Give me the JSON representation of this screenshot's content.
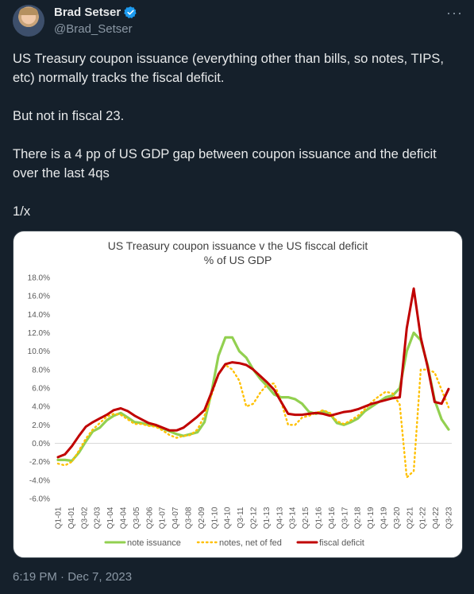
{
  "author": {
    "name": "Brad Setser",
    "handle": "@Brad_Setser"
  },
  "more_label": "···",
  "tweet": {
    "paragraphs": [
      "US Treasury coupon issuance (everything other than bills, so notes, TIPS, etc) normally tracks the fiscal deficit.",
      "But not in fiscal 23.",
      "There is a 4 pp of US GDP gap between coupon issuance and the deficit over the last 4qs",
      "1/x"
    ]
  },
  "timestamp": "6:19 PM · Dec 7, 2023",
  "colors": {
    "verified": "#1d9bf0",
    "note_issuance": "#92d050",
    "notes_net_of_fed": "#ffc000",
    "fiscal_deficit": "#c00000"
  },
  "chart_data": {
    "type": "line",
    "title": "US Treasury coupon issuance v the US fisccal deficit",
    "subtitle": "% of US GDP",
    "ylim": [
      -6,
      18
    ],
    "yticks": [
      18,
      16,
      14,
      12,
      10,
      8,
      6,
      4,
      2,
      0,
      -2,
      -4,
      -6
    ],
    "ytick_labels": [
      "18.0%",
      "16.0%",
      "14.0%",
      "12.0%",
      "10.0%",
      "8.0%",
      "6.0%",
      "4.0%",
      "2.0%",
      "0.0%",
      "-2.0%",
      "-4.0%",
      "-6.0%"
    ],
    "xtick_labels": [
      "Q1-01",
      "Q4-01",
      "Q3-02",
      "Q2-03",
      "Q1-04",
      "Q4-04",
      "Q3-05",
      "Q2-06",
      "Q1-07",
      "Q4-07",
      "Q3-08",
      "Q2-09",
      "Q1-10",
      "Q4-10",
      "Q3-11",
      "Q2-12",
      "Q1-13",
      "Q4-13",
      "Q3-14",
      "Q2-15",
      "Q1-16",
      "Q4-16",
      "Q3-17",
      "Q2-18",
      "Q1-19",
      "Q4-19",
      "Q3-20",
      "Q2-21",
      "Q1-22",
      "Q4-22",
      "Q3-23"
    ],
    "grid": false,
    "legend": "bottom",
    "series": [
      {
        "name": "note issuance",
        "style": "solid",
        "values": [
          -1.8,
          -1.8,
          -1.9,
          -1.0,
          0.2,
          1.3,
          1.7,
          2.5,
          3.0,
          3.3,
          2.8,
          2.3,
          2.2,
          2.0,
          1.9,
          1.6,
          1.3,
          1.0,
          0.8,
          1.0,
          1.2,
          2.3,
          5.5,
          9.5,
          11.5,
          11.5,
          10.0,
          9.3,
          8.0,
          7.0,
          6.2,
          5.3,
          5.0,
          5.0,
          4.8,
          4.3,
          3.4,
          3.2,
          3.5,
          3.2,
          2.2,
          2.0,
          2.3,
          2.7,
          3.5,
          4.0,
          4.5,
          5.0,
          5.2,
          6.0,
          10.0,
          12.0,
          11.2,
          8.5,
          4.7,
          2.6,
          1.5
        ]
      },
      {
        "name": "notes, net of fed",
        "style": "dotted",
        "values": [
          -2.2,
          -2.4,
          -2.0,
          -0.8,
          0.5,
          1.5,
          2.2,
          2.9,
          3.2,
          3.1,
          2.6,
          2.1,
          2.1,
          1.9,
          1.8,
          1.4,
          0.9,
          0.6,
          0.8,
          0.9,
          1.5,
          3.0,
          5.2,
          7.5,
          8.5,
          8.0,
          6.8,
          4.0,
          4.3,
          5.5,
          6.4,
          6.5,
          4.5,
          2.0,
          2.0,
          2.8,
          3.0,
          3.3,
          3.6,
          3.3,
          2.4,
          2.1,
          2.5,
          3.0,
          3.7,
          4.5,
          5.1,
          5.6,
          5.4,
          4.2,
          -3.7,
          -3.0,
          8.0,
          8.0,
          7.7,
          5.8,
          3.9
        ]
      },
      {
        "name": "fiscal deficit",
        "style": "solid",
        "values": [
          -1.5,
          -1.2,
          -0.3,
          0.8,
          1.8,
          2.3,
          2.7,
          3.1,
          3.6,
          3.8,
          3.5,
          3.0,
          2.6,
          2.2,
          2.0,
          1.7,
          1.4,
          1.4,
          1.7,
          2.3,
          2.9,
          3.6,
          5.5,
          7.5,
          8.6,
          8.8,
          8.7,
          8.5,
          8.0,
          7.3,
          6.6,
          5.8,
          4.5,
          3.2,
          3.1,
          3.1,
          3.2,
          3.3,
          3.2,
          3.0,
          3.2,
          3.4,
          3.5,
          3.7,
          4.0,
          4.3,
          4.5,
          4.7,
          4.9,
          5.0,
          12.5,
          16.8,
          11.5,
          8.3,
          4.5,
          4.3,
          5.9
        ]
      }
    ]
  }
}
